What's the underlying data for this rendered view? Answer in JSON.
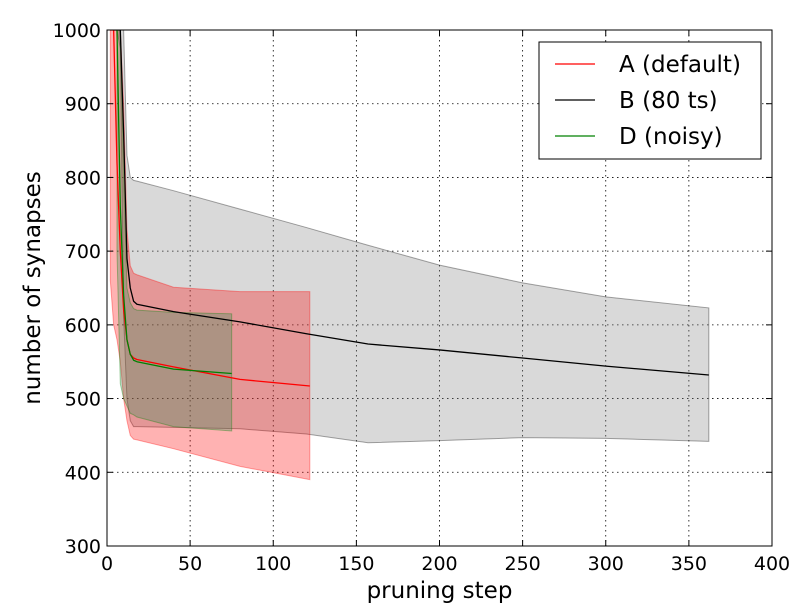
{
  "chart_data": {
    "type": "line",
    "xlabel": "pruning step",
    "ylabel": "number of synapses",
    "xlim": [
      0,
      400
    ],
    "ylim": [
      300,
      1000
    ],
    "xticks": [
      0,
      50,
      100,
      150,
      200,
      250,
      300,
      350,
      400
    ],
    "yticks": [
      300,
      400,
      500,
      600,
      700,
      800,
      900,
      1000
    ],
    "x_tick_labels": [
      "0",
      "50",
      "100",
      "150",
      "200",
      "250",
      "300",
      "350",
      "400"
    ],
    "y_tick_labels": [
      "300",
      "400",
      "500",
      "600",
      "700",
      "800",
      "900",
      "1000"
    ],
    "grid": true,
    "legend_position": "top-right",
    "series": [
      {
        "name": "B (80 ts)",
        "color": "#000000",
        "fill_color": "#808080",
        "x": [
          4,
          6,
          8,
          10,
          12,
          14,
          16,
          18,
          40,
          80,
          120,
          157,
          200,
          250,
          300,
          362
        ],
        "y": [
          1000,
          1000,
          1000,
          860,
          690,
          650,
          632,
          628,
          618,
          604,
          588,
          574,
          566,
          555,
          544,
          532
        ],
        "upper": [
          1000,
          1000,
          1000,
          1000,
          830,
          800,
          796,
          795,
          782,
          757,
          732,
          708,
          681,
          657,
          638,
          623
        ],
        "lower": [
          1000,
          1000,
          975,
          610,
          500,
          470,
          462,
          462,
          461,
          459,
          452,
          440,
          443,
          447,
          446,
          442
        ]
      },
      {
        "name": "A (default)",
        "color": "#ff0000",
        "fill_color": "#ff0000",
        "x": [
          2,
          4,
          6,
          8,
          10,
          12,
          14,
          16,
          18,
          40,
          80,
          122
        ],
        "y": [
          1000,
          1000,
          820,
          700,
          620,
          580,
          560,
          555,
          553,
          543,
          526,
          517
        ],
        "upper": [
          1000,
          1000,
          1000,
          1000,
          900,
          730,
          680,
          670,
          668,
          651,
          645,
          645
        ],
        "lower": [
          660,
          600,
          580,
          550,
          500,
          470,
          450,
          445,
          444,
          432,
          408,
          390
        ]
      },
      {
        "name": "D (noisy)",
        "color": "#008000",
        "fill_color": "#2e8b57",
        "x": [
          6,
          8,
          10,
          12,
          14,
          16,
          18,
          40,
          75
        ],
        "y": [
          1000,
          760,
          640,
          580,
          560,
          552,
          550,
          540,
          534
        ],
        "upper": [
          1000,
          1000,
          800,
          650,
          630,
          622,
          620,
          617,
          615
        ],
        "lower": [
          700,
          520,
          500,
          490,
          480,
          478,
          475,
          462,
          456
        ]
      }
    ],
    "legend_order": [
      "A (default)",
      "B (80 ts)",
      "D (noisy)"
    ]
  }
}
